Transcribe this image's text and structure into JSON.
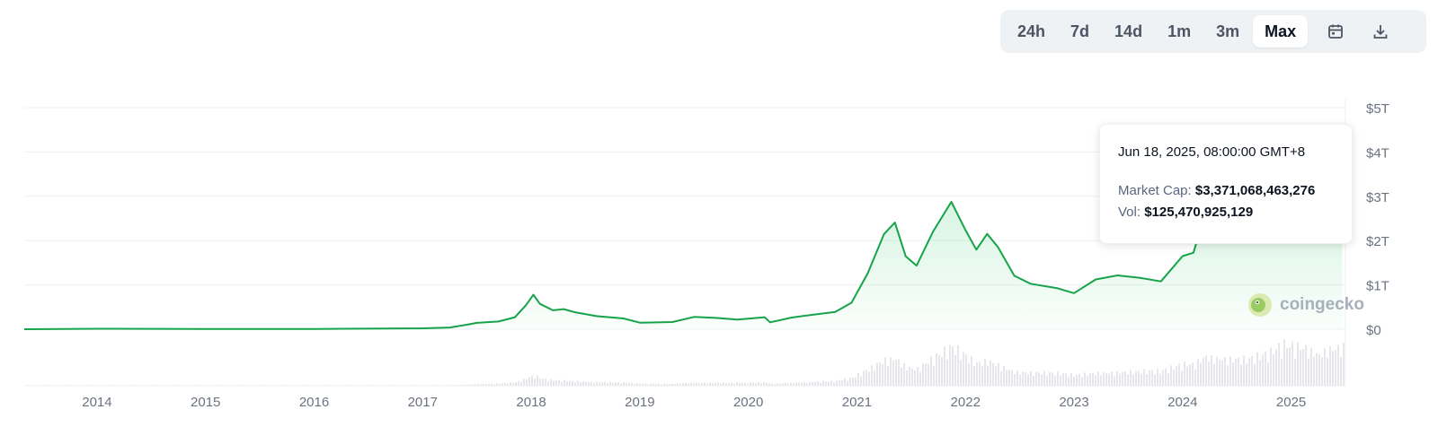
{
  "range_buttons": [
    {
      "label": "24h",
      "active": false
    },
    {
      "label": "7d",
      "active": false
    },
    {
      "label": "14d",
      "active": false
    },
    {
      "label": "1m",
      "active": false
    },
    {
      "label": "3m",
      "active": false
    },
    {
      "label": "Max",
      "active": true
    }
  ],
  "icons": {
    "calendar": "calendar-icon",
    "download": "download-icon"
  },
  "tooltip": {
    "date": "Jun 18, 2025, 08:00:00 GMT+8",
    "market_cap_label": "Market Cap:",
    "market_cap_value": "$3,371,068,463,276",
    "volume_label": "Vol:",
    "volume_value": "$125,470,925,129"
  },
  "watermark": "coingecko",
  "colors": {
    "line": "#16a34a",
    "fill": "#22c55e",
    "volume": "#d1d5db",
    "accent_bg": "#eff2f5"
  },
  "chart_data": {
    "type": "area",
    "title": "",
    "xlabel": "",
    "ylabel": "",
    "x_ticks": [
      "2014",
      "2015",
      "2016",
      "2017",
      "2018",
      "2019",
      "2020",
      "2021",
      "2022",
      "2023",
      "2024",
      "2025"
    ],
    "y_ticks": [
      {
        "value": 0,
        "label": "$0"
      },
      {
        "value": 1,
        "label": "$1T"
      },
      {
        "value": 2,
        "label": "$2T"
      },
      {
        "value": 3,
        "label": "$3T"
      },
      {
        "value": 4,
        "label": "$4T"
      },
      {
        "value": 5,
        "label": "$5T"
      }
    ],
    "ylim": [
      0,
      5
    ],
    "xlim": [
      2013.33,
      2025.5
    ],
    "grid": true,
    "series": [
      {
        "points": [
          [
            2013.33,
            0.0
          ],
          [
            2014.0,
            0.01
          ],
          [
            2015.0,
            0.005
          ],
          [
            2016.0,
            0.006
          ],
          [
            2017.0,
            0.02
          ],
          [
            2017.25,
            0.04
          ],
          [
            2017.4,
            0.1
          ],
          [
            2017.5,
            0.14
          ],
          [
            2017.7,
            0.17
          ],
          [
            2017.85,
            0.27
          ],
          [
            2017.95,
            0.55
          ],
          [
            2018.02,
            0.8
          ],
          [
            2018.08,
            0.58
          ],
          [
            2018.2,
            0.42
          ],
          [
            2018.3,
            0.44
          ],
          [
            2018.4,
            0.38
          ],
          [
            2018.6,
            0.3
          ],
          [
            2018.85,
            0.25
          ],
          [
            2019.0,
            0.15
          ],
          [
            2019.3,
            0.16
          ],
          [
            2019.5,
            0.27
          ],
          [
            2019.7,
            0.25
          ],
          [
            2019.9,
            0.22
          ],
          [
            2020.15,
            0.28
          ],
          [
            2020.2,
            0.16
          ],
          [
            2020.4,
            0.26
          ],
          [
            2020.6,
            0.32
          ],
          [
            2020.8,
            0.38
          ],
          [
            2020.95,
            0.6
          ],
          [
            2021.1,
            1.3
          ],
          [
            2021.25,
            2.2
          ],
          [
            2021.35,
            2.4
          ],
          [
            2021.45,
            1.6
          ],
          [
            2021.55,
            1.4
          ],
          [
            2021.7,
            2.2
          ],
          [
            2021.87,
            2.95
          ],
          [
            2022.0,
            2.3
          ],
          [
            2022.1,
            1.8
          ],
          [
            2022.2,
            2.1
          ],
          [
            2022.3,
            1.8
          ],
          [
            2022.45,
            1.2
          ],
          [
            2022.6,
            1.05
          ],
          [
            2022.85,
            0.95
          ],
          [
            2023.0,
            0.82
          ],
          [
            2023.2,
            1.1
          ],
          [
            2023.4,
            1.18
          ],
          [
            2023.6,
            1.15
          ],
          [
            2023.8,
            1.1
          ],
          [
            2024.0,
            1.7
          ],
          [
            2024.1,
            1.75
          ],
          [
            2024.2,
            2.5
          ],
          [
            2024.35,
            2.35
          ],
          [
            2024.6,
            2.1
          ],
          [
            2024.8,
            2.5
          ],
          [
            2024.95,
            3.4
          ],
          [
            2025.1,
            3.3
          ],
          [
            2025.25,
            2.7
          ],
          [
            2025.35,
            3.35
          ],
          [
            2025.42,
            3.55
          ],
          [
            2025.47,
            3.37
          ]
        ]
      }
    ],
    "highlight_point": {
      "x": 2025.47,
      "y": 3.37
    }
  }
}
